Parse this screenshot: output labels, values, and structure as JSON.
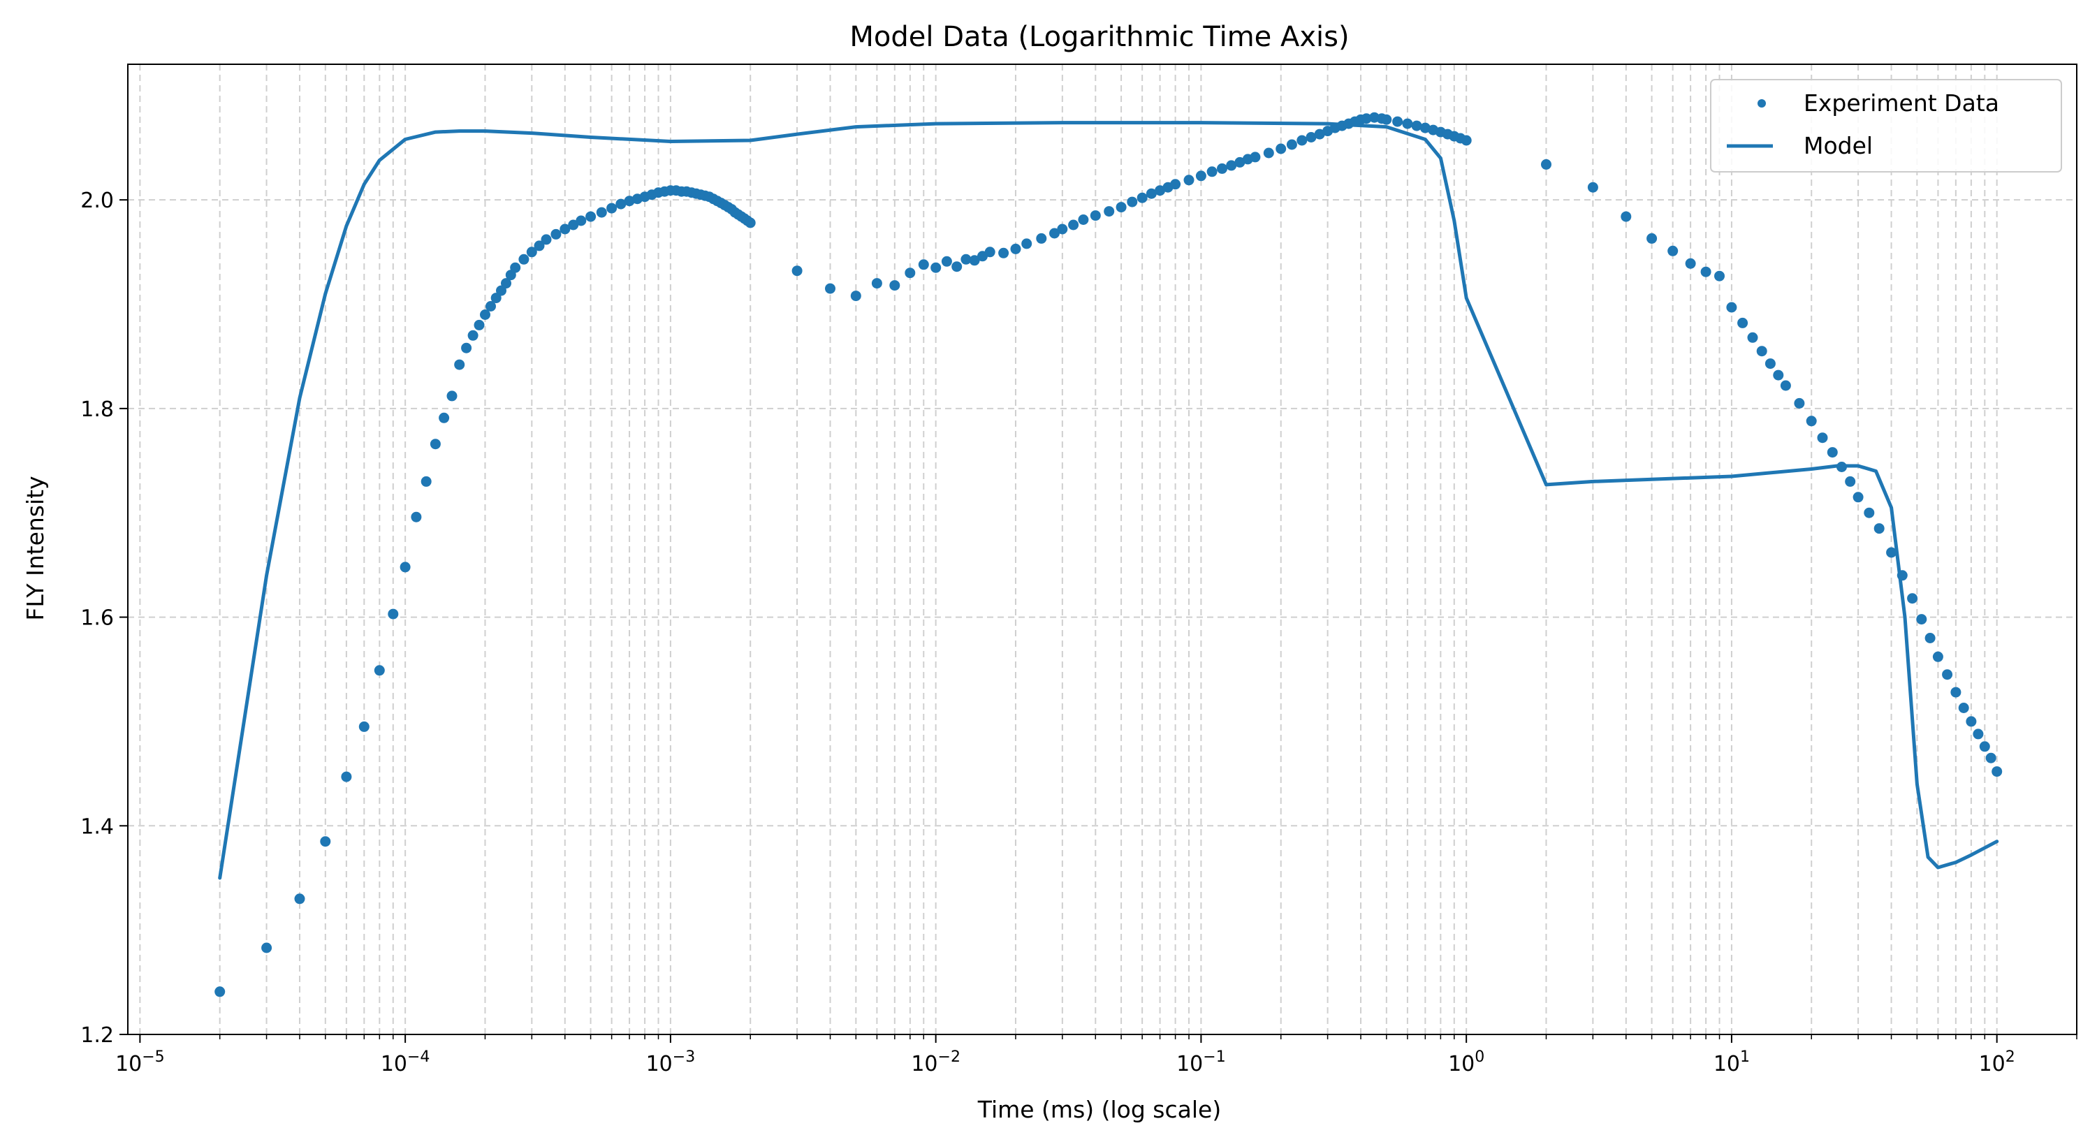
{
  "chart_data": {
    "type": "scatter",
    "title": "Model Data (Logarithmic Time Axis)",
    "xlabel": "Time (ms) (log scale)",
    "ylabel": "FLY Intensity",
    "xscale": "log",
    "xlim": [
      9e-06,
      200
    ],
    "ylim": [
      1.2,
      2.13
    ],
    "grid": "on (both major and minor, dashed light gray)",
    "legend_position": "top-right",
    "x_major_ticks": [
      1e-05,
      0.0001,
      0.001,
      0.01,
      0.1,
      1,
      10,
      100
    ],
    "x_tick_labels": [
      {
        "base": "10",
        "exp": "−5"
      },
      {
        "base": "10",
        "exp": "−4"
      },
      {
        "base": "10",
        "exp": "−3"
      },
      {
        "base": "10",
        "exp": "−2"
      },
      {
        "base": "10",
        "exp": "−1"
      },
      {
        "base": "10",
        "exp": "0"
      },
      {
        "base": "10",
        "exp": "1"
      },
      {
        "base": "10",
        "exp": "2"
      }
    ],
    "y_ticks": [
      1.2,
      1.4,
      1.6,
      1.8,
      2.0
    ],
    "y_tick_labels": [
      "1.2",
      "1.4",
      "1.6",
      "1.8",
      "2.0"
    ],
    "colors": {
      "series": "#1f77b4",
      "grid": "#cfcfcf",
      "axis": "#000000"
    },
    "series": [
      {
        "name": "Experiment Data",
        "kind": "scatter",
        "points": [
          [
            2e-05,
            1.241
          ],
          [
            3e-05,
            1.283
          ],
          [
            4e-05,
            1.33
          ],
          [
            5e-05,
            1.385
          ],
          [
            6e-05,
            1.447
          ],
          [
            7e-05,
            1.495
          ],
          [
            8e-05,
            1.549
          ],
          [
            9e-05,
            1.603
          ],
          [
            0.0001,
            1.648
          ],
          [
            0.00011,
            1.696
          ],
          [
            0.00012,
            1.73
          ],
          [
            0.00013,
            1.766
          ],
          [
            0.00014,
            1.791
          ],
          [
            0.00015,
            1.812
          ],
          [
            0.00016,
            1.842
          ],
          [
            0.00017,
            1.858
          ],
          [
            0.00018,
            1.87
          ],
          [
            0.00019,
            1.88
          ],
          [
            0.0002,
            1.89
          ],
          [
            0.00021,
            1.898
          ],
          [
            0.00022,
            1.906
          ],
          [
            0.00023,
            1.913
          ],
          [
            0.00024,
            1.92
          ],
          [
            0.00025,
            1.928
          ],
          [
            0.00026,
            1.935
          ],
          [
            0.00028,
            1.943
          ],
          [
            0.0003,
            1.95
          ],
          [
            0.00032,
            1.956
          ],
          [
            0.00034,
            1.962
          ],
          [
            0.00037,
            1.967
          ],
          [
            0.0004,
            1.972
          ],
          [
            0.00043,
            1.976
          ],
          [
            0.00046,
            1.98
          ],
          [
            0.0005,
            1.984
          ],
          [
            0.00055,
            1.988
          ],
          [
            0.0006,
            1.992
          ],
          [
            0.00065,
            1.996
          ],
          [
            0.0007,
            1.999
          ],
          [
            0.00075,
            2.001
          ],
          [
            0.0008,
            2.003
          ],
          [
            0.00085,
            2.005
          ],
          [
            0.0009,
            2.007
          ],
          [
            0.00095,
            2.008
          ],
          [
            0.001,
            2.009
          ],
          [
            0.00105,
            2.009
          ],
          [
            0.0011,
            2.008
          ],
          [
            0.00115,
            2.008
          ],
          [
            0.0012,
            2.007
          ],
          [
            0.00125,
            2.006
          ],
          [
            0.0013,
            2.005
          ],
          [
            0.00135,
            2.004
          ],
          [
            0.0014,
            2.003
          ],
          [
            0.00145,
            2.001
          ],
          [
            0.0015,
            1.999
          ],
          [
            0.00155,
            1.997
          ],
          [
            0.0016,
            1.995
          ],
          [
            0.00165,
            1.993
          ],
          [
            0.0017,
            1.991
          ],
          [
            0.00175,
            1.988
          ],
          [
            0.0018,
            1.986
          ],
          [
            0.00185,
            1.984
          ],
          [
            0.0019,
            1.982
          ],
          [
            0.00195,
            1.98
          ],
          [
            0.002,
            1.978
          ],
          [
            0.003,
            1.932
          ],
          [
            0.004,
            1.915
          ],
          [
            0.005,
            1.908
          ],
          [
            0.006,
            1.92
          ],
          [
            0.007,
            1.918
          ],
          [
            0.008,
            1.93
          ],
          [
            0.009,
            1.938
          ],
          [
            0.01,
            1.935
          ],
          [
            0.011,
            1.941
          ],
          [
            0.012,
            1.936
          ],
          [
            0.013,
            1.943
          ],
          [
            0.014,
            1.942
          ],
          [
            0.015,
            1.946
          ],
          [
            0.016,
            1.95
          ],
          [
            0.018,
            1.949
          ],
          [
            0.02,
            1.953
          ],
          [
            0.022,
            1.958
          ],
          [
            0.025,
            1.963
          ],
          [
            0.028,
            1.968
          ],
          [
            0.03,
            1.972
          ],
          [
            0.033,
            1.976
          ],
          [
            0.036,
            1.981
          ],
          [
            0.04,
            1.985
          ],
          [
            0.045,
            1.989
          ],
          [
            0.05,
            1.993
          ],
          [
            0.055,
            1.998
          ],
          [
            0.06,
            2.002
          ],
          [
            0.065,
            2.006
          ],
          [
            0.07,
            2.009
          ],
          [
            0.075,
            2.012
          ],
          [
            0.08,
            2.015
          ],
          [
            0.09,
            2.019
          ],
          [
            0.1,
            2.023
          ],
          [
            0.11,
            2.027
          ],
          [
            0.12,
            2.03
          ],
          [
            0.13,
            2.033
          ],
          [
            0.14,
            2.036
          ],
          [
            0.15,
            2.039
          ],
          [
            0.16,
            2.041
          ],
          [
            0.18,
            2.045
          ],
          [
            0.2,
            2.049
          ],
          [
            0.22,
            2.053
          ],
          [
            0.24,
            2.057
          ],
          [
            0.26,
            2.06
          ],
          [
            0.28,
            2.063
          ],
          [
            0.3,
            2.066
          ],
          [
            0.32,
            2.069
          ],
          [
            0.34,
            2.071
          ],
          [
            0.36,
            2.073
          ],
          [
            0.38,
            2.075
          ],
          [
            0.4,
            2.077
          ],
          [
            0.42,
            2.078
          ],
          [
            0.45,
            2.079
          ],
          [
            0.48,
            2.078
          ],
          [
            0.5,
            2.077
          ],
          [
            0.55,
            2.075
          ],
          [
            0.6,
            2.073
          ],
          [
            0.65,
            2.071
          ],
          [
            0.7,
            2.069
          ],
          [
            0.75,
            2.067
          ],
          [
            0.8,
            2.065
          ],
          [
            0.85,
            2.063
          ],
          [
            0.9,
            2.061
          ],
          [
            0.95,
            2.059
          ],
          [
            1.0,
            2.057
          ],
          [
            2,
            2.034
          ],
          [
            3,
            2.012
          ],
          [
            4,
            1.984
          ],
          [
            5,
            1.963
          ],
          [
            6,
            1.951
          ],
          [
            7,
            1.939
          ],
          [
            8,
            1.931
          ],
          [
            9,
            1.927
          ],
          [
            10,
            1.897
          ],
          [
            11,
            1.882
          ],
          [
            12,
            1.868
          ],
          [
            13,
            1.855
          ],
          [
            14,
            1.843
          ],
          [
            15,
            1.832
          ],
          [
            16,
            1.822
          ],
          [
            18,
            1.805
          ],
          [
            20,
            1.788
          ],
          [
            22,
            1.772
          ],
          [
            24,
            1.758
          ],
          [
            26,
            1.744
          ],
          [
            28,
            1.73
          ],
          [
            30,
            1.715
          ],
          [
            33,
            1.7
          ],
          [
            36,
            1.685
          ],
          [
            40,
            1.662
          ],
          [
            44,
            1.64
          ],
          [
            48,
            1.618
          ],
          [
            52,
            1.598
          ],
          [
            56,
            1.58
          ],
          [
            60,
            1.562
          ],
          [
            65,
            1.545
          ],
          [
            70,
            1.528
          ],
          [
            75,
            1.513
          ],
          [
            80,
            1.5
          ],
          [
            85,
            1.488
          ],
          [
            90,
            1.476
          ],
          [
            95,
            1.465
          ],
          [
            100,
            1.452
          ]
        ]
      },
      {
        "name": "Model",
        "kind": "line",
        "points": [
          [
            2e-05,
            1.35
          ],
          [
            3e-05,
            1.64
          ],
          [
            4e-05,
            1.81
          ],
          [
            5e-05,
            1.91
          ],
          [
            6e-05,
            1.975
          ],
          [
            7e-05,
            2.015
          ],
          [
            8e-05,
            2.038
          ],
          [
            0.0001,
            2.058
          ],
          [
            0.00013,
            2.065
          ],
          [
            0.00016,
            2.066
          ],
          [
            0.0002,
            2.066
          ],
          [
            0.0003,
            2.064
          ],
          [
            0.0005,
            2.06
          ],
          [
            0.001,
            2.056
          ],
          [
            0.002,
            2.057
          ],
          [
            0.003,
            2.063
          ],
          [
            0.005,
            2.07
          ],
          [
            0.01,
            2.073
          ],
          [
            0.03,
            2.074
          ],
          [
            0.1,
            2.074
          ],
          [
            0.3,
            2.073
          ],
          [
            0.5,
            2.07
          ],
          [
            0.7,
            2.058
          ],
          [
            0.8,
            2.04
          ],
          [
            0.9,
            1.98
          ],
          [
            1.0,
            1.906
          ],
          [
            2,
            1.727
          ],
          [
            3,
            1.73
          ],
          [
            10,
            1.735
          ],
          [
            20,
            1.742
          ],
          [
            25,
            1.745
          ],
          [
            30,
            1.745
          ],
          [
            35,
            1.74
          ],
          [
            40,
            1.705
          ],
          [
            45,
            1.6
          ],
          [
            50,
            1.44
          ],
          [
            55,
            1.37
          ],
          [
            60,
            1.36
          ],
          [
            70,
            1.365
          ],
          [
            80,
            1.372
          ],
          [
            100,
            1.385
          ]
        ]
      }
    ]
  }
}
